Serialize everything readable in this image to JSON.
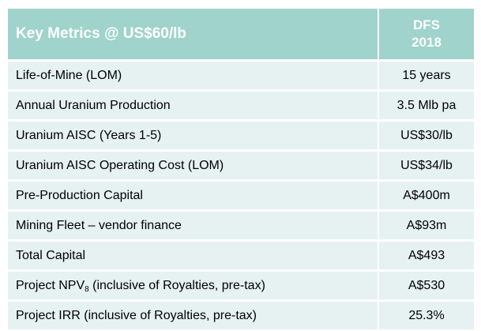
{
  "table": {
    "header": {
      "label": "Key Metrics @ US$60/lb",
      "value_line1": "DFS",
      "value_line2": "2018"
    },
    "rows": [
      {
        "label": "Life-of-Mine (LOM)",
        "value": "15 years"
      },
      {
        "label": "Annual Uranium Production",
        "value": "3.5 Mlb pa"
      },
      {
        "label": "Uranium AISC (Years 1-5)",
        "value": "US$30/lb"
      },
      {
        "label": "Uranium AISC Operating Cost (LOM)",
        "value": "US$34/lb"
      },
      {
        "label": "Pre-Production Capital",
        "value": "A$400m"
      },
      {
        "label": "Mining Fleet – vendor finance",
        "value": "A$93m"
      },
      {
        "label": "Total Capital",
        "value": "A$493"
      },
      {
        "label_pre": "Project NPV",
        "label_sub": "8",
        "label_post": " (inclusive of Royalties, pre-tax)",
        "value": "A$530"
      },
      {
        "label": "Project IRR (inclusive of Royalties, pre-tax)",
        "value": "25.3%"
      }
    ],
    "colors": {
      "header_bg": "#9fd3cb",
      "row_bg": "#e6f1f1",
      "header_text": "#ffffff"
    }
  }
}
